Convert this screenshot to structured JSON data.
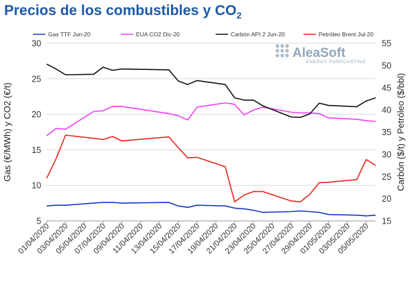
{
  "header": {
    "title_main": "Precios de los combustibles y CO",
    "title_sub": "2"
  },
  "logo": {
    "name": "AleaSoft",
    "tagline": "ENERGY FORECASTING"
  },
  "chart_data": {
    "type": "line",
    "title": "Precios de los combustibles y CO2",
    "xlabel": "",
    "ylabel_left": "Gas (€/MWh) y CO2 (€/t)",
    "ylabel_right": "Carbón ($/t) y Petróleo ($/bbl)",
    "ylim_left": [
      5,
      30
    ],
    "ylim_right": [
      15,
      55
    ],
    "yticks_left": [
      "5",
      "10",
      "15",
      "20",
      "25",
      "30"
    ],
    "yticks_right": [
      "15",
      "20",
      "25",
      "30",
      "35",
      "40",
      "45",
      "50",
      "55"
    ],
    "grid": true,
    "legend_position": "top",
    "x": [
      "01/04/2020",
      "02/04/2020",
      "03/04/2020",
      "06/04/2020",
      "07/04/2020",
      "08/04/2020",
      "09/04/2020",
      "14/04/2020",
      "15/04/2020",
      "16/04/2020",
      "17/04/2020",
      "20/04/2020",
      "21/04/2020",
      "22/04/2020",
      "23/04/2020",
      "24/04/2020",
      "27/04/2020",
      "28/04/2020",
      "29/04/2020",
      "30/04/2020",
      "01/05/2020",
      "04/05/2020",
      "05/05/2020",
      "06/05/2020"
    ],
    "xticks": [
      "01/04/2020",
      "03/04/2020",
      "05/04/2020",
      "07/04/2020",
      "09/04/2020",
      "11/04/2020",
      "13/04/2020",
      "15/04/2020",
      "17/04/2020",
      "19/04/2020",
      "21/04/2020",
      "23/04/2020",
      "25/04/2020",
      "27/04/2020",
      "29/04/2020",
      "01/05/2020",
      "03/05/2020",
      "05/05/2020"
    ],
    "series": [
      {
        "name": "Gas TTF Jun-20",
        "axis": "left",
        "color": "#1a35c9",
        "values": [
          7.1,
          7.2,
          7.2,
          7.5,
          7.6,
          7.6,
          7.5,
          7.6,
          7.1,
          6.9,
          7.2,
          7.1,
          6.8,
          6.7,
          6.5,
          6.2,
          6.3,
          6.4,
          6.3,
          6.2,
          5.9,
          5.8,
          5.7,
          5.8
        ]
      },
      {
        "name": "EUA CO2 Dic-20",
        "axis": "left",
        "color": "#f23cf2",
        "values": [
          17.0,
          18.0,
          17.9,
          20.4,
          20.5,
          21.1,
          21.1,
          20.1,
          19.8,
          19.2,
          21.0,
          21.6,
          21.4,
          19.9,
          20.6,
          21.0,
          20.3,
          20.2,
          20.2,
          20.1,
          19.5,
          19.3,
          19.1,
          19.0
        ]
      },
      {
        "name": "Carbón API 2 Jun-20",
        "axis": "right",
        "color": "#111111",
        "values": [
          50.3,
          49.2,
          47.9,
          48.0,
          49.6,
          48.9,
          49.2,
          49.0,
          46.5,
          45.7,
          46.6,
          45.7,
          42.7,
          42.2,
          42.2,
          40.9,
          38.4,
          38.3,
          39.1,
          41.5,
          41.0,
          40.7,
          42.0,
          42.7
        ]
      },
      {
        "name": "Petróleo Brent Jul-20",
        "axis": "right",
        "color": "#e8231a",
        "values": [
          24.6,
          29.0,
          34.3,
          33.6,
          33.3,
          34.0,
          33.0,
          33.9,
          31.5,
          29.2,
          29.3,
          27.2,
          19.3,
          20.8,
          21.6,
          21.6,
          19.5,
          19.3,
          21.0,
          23.6,
          23.7,
          24.3,
          28.8,
          27.5
        ]
      }
    ]
  }
}
